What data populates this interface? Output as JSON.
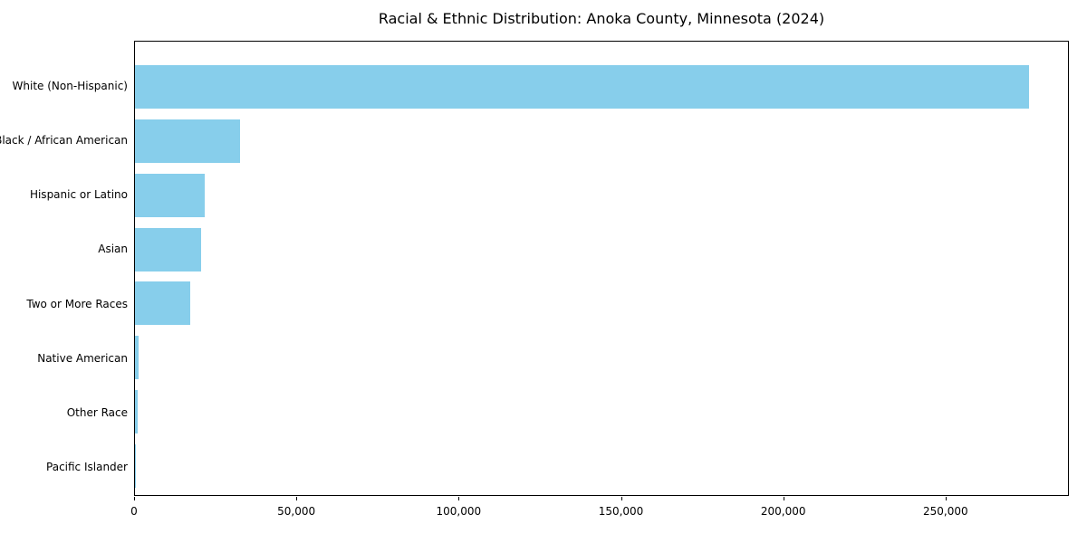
{
  "chart_data": {
    "type": "bar",
    "orientation": "horizontal",
    "title": "Racial & Ethnic Distribution: Anoka County, Minnesota (2024)",
    "categories": [
      "White (Non-Hispanic)",
      "Black / African American",
      "Hispanic or Latino",
      "Asian",
      "Two or More Races",
      "Native American",
      "Other Race",
      "Pacific Islander"
    ],
    "values": [
      276000,
      32500,
      21500,
      20500,
      17000,
      1100,
      800,
      200
    ],
    "xlabel": "",
    "ylabel": "",
    "xlim": [
      0,
      288000
    ],
    "x_ticks": [
      0,
      50000,
      100000,
      150000,
      200000,
      250000
    ],
    "x_tick_labels": [
      "0",
      "50,000",
      "100,000",
      "150,000",
      "200,000",
      "250,000"
    ],
    "bar_color": "#87CEEB",
    "background": "#FFFFFF",
    "grid": false,
    "legend": null
  }
}
